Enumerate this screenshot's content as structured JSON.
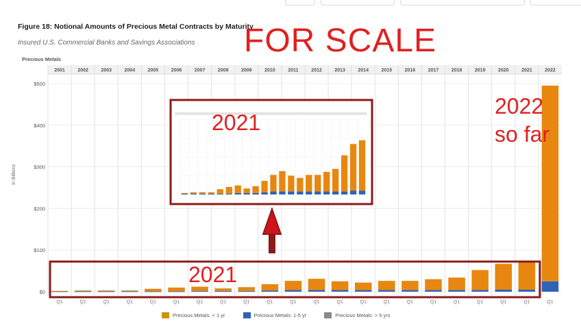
{
  "title": "Figure 18: Notional Amounts of Precious Metal Contracts by Maturity",
  "subtitle": "Insured U.S. Commercial Banks and Savings Associations",
  "annotations": {
    "for_scale": "FOR SCALE",
    "inset_label": "2021",
    "year_2022_label": "2022",
    "so_far_label": "so far",
    "box_label": "2021"
  },
  "colors": {
    "lt1yr": "#e8870f",
    "y1to5": "#2e63b8",
    "gt5": "#8a8a8a",
    "annotation_red": "#e02020",
    "box_red": "#8b1a1a"
  },
  "chart_data": {
    "type": "bar",
    "panel_title": "Precious Metals",
    "ylabel": "In Billions",
    "yticks": [
      "$0",
      "$100",
      "$200",
      "$300",
      "$400",
      "$500"
    ],
    "ylim": [
      0,
      500
    ],
    "grid": true,
    "categories": [
      "2001",
      "2002",
      "2003",
      "2004",
      "2005",
      "2006",
      "2007",
      "2008",
      "2009",
      "2010",
      "2011",
      "2012",
      "2013",
      "2014",
      "2015",
      "2016",
      "2017",
      "2018",
      "2019",
      "2020",
      "2021",
      "2022"
    ],
    "quarter_labels": [
      "Q1",
      "Q1",
      "Q1",
      "Q1",
      "Q1",
      "Q1",
      "Q1",
      "Q1",
      "Q1",
      "Q1",
      "Q1",
      "Q1",
      "Q1",
      "Q1",
      "Q1",
      "Q1",
      "Q1",
      "Q1",
      "Q1",
      "Q1",
      "Q1",
      "Q1"
    ],
    "series": [
      {
        "name": "Precious Metals: < 1 yr",
        "values": [
          1,
          2,
          2,
          2,
          6,
          9,
          10,
          6,
          9,
          15,
          22,
          27,
          21,
          18,
          22,
          22,
          26,
          30,
          48,
          62,
          67,
          470
        ]
      },
      {
        "name": "Precious Metals: 1-5 yr",
        "values": [
          1,
          1,
          1,
          1,
          1,
          1,
          2,
          2,
          2,
          3,
          4,
          4,
          4,
          4,
          4,
          4,
          4,
          4,
          4,
          5,
          5,
          25
        ]
      },
      {
        "name": "Precious Metals: > 5 yrs",
        "values": [
          0,
          0,
          0,
          0,
          0,
          0,
          0,
          0,
          0,
          0,
          0,
          0,
          0,
          0,
          0,
          0,
          0,
          0,
          0,
          0,
          0,
          0
        ]
      }
    ],
    "legend": "bottom"
  }
}
